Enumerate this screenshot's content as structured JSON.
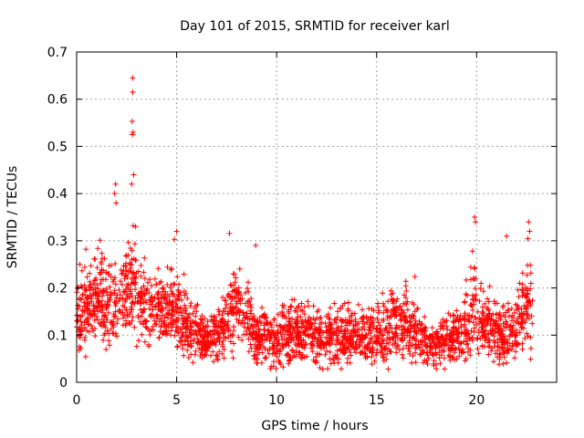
{
  "chart_data": {
    "type": "scatter",
    "title": "Day 101 of 2015, SRMTID for receiver karl",
    "xlabel": "GPS time / hours",
    "ylabel": "SRMTID / TECUs",
    "xlim": [
      0,
      24
    ],
    "ylim": [
      0,
      0.7
    ],
    "grid": true,
    "marker": "+",
    "xticks": [
      0,
      5,
      10,
      15,
      20
    ],
    "xtick_labels": [
      "0",
      "5",
      "10",
      "15",
      "20"
    ],
    "yticks": [
      0,
      0.1,
      0.2,
      0.3,
      0.4,
      0.5,
      0.6,
      0.7
    ],
    "ytick_labels": [
      "0",
      "0.1",
      "0.2",
      "0.3",
      "0.4",
      "0.5",
      "0.6",
      "0.7"
    ],
    "color": "#ff0000",
    "data_extent_hours": [
      0,
      22.8
    ],
    "series": [
      {
        "name": "SRMTID",
        "profile_hours": [
          0,
          0.5,
          1.0,
          1.5,
          2.0,
          2.5,
          2.8,
          3.2,
          3.8,
          4.5,
          5.0,
          5.5,
          6.0,
          6.5,
          7.0,
          7.5,
          8.0,
          8.5,
          9.0,
          9.5,
          10.0,
          10.5,
          11.0,
          11.5,
          12.0,
          12.5,
          13.0,
          13.5,
          14.0,
          14.5,
          15.0,
          15.5,
          16.0,
          16.5,
          17.0,
          17.5,
          18.0,
          18.5,
          19.0,
          19.5,
          19.9,
          20.3,
          20.8,
          21.3,
          21.8,
          22.2,
          22.6,
          22.8
        ],
        "profile_mean": [
          0.14,
          0.15,
          0.19,
          0.17,
          0.16,
          0.19,
          0.22,
          0.17,
          0.16,
          0.15,
          0.16,
          0.12,
          0.1,
          0.09,
          0.1,
          0.13,
          0.16,
          0.14,
          0.1,
          0.1,
          0.09,
          0.1,
          0.11,
          0.1,
          0.1,
          0.09,
          0.09,
          0.1,
          0.1,
          0.09,
          0.1,
          0.11,
          0.13,
          0.12,
          0.1,
          0.08,
          0.08,
          0.09,
          0.1,
          0.11,
          0.17,
          0.13,
          0.11,
          0.1,
          0.1,
          0.14,
          0.16,
          0.15
        ],
        "profile_spread": [
          0.05,
          0.05,
          0.06,
          0.07,
          0.05,
          0.07,
          0.09,
          0.06,
          0.05,
          0.05,
          0.06,
          0.04,
          0.04,
          0.03,
          0.04,
          0.05,
          0.05,
          0.05,
          0.04,
          0.04,
          0.04,
          0.04,
          0.04,
          0.04,
          0.04,
          0.04,
          0.04,
          0.04,
          0.04,
          0.04,
          0.04,
          0.05,
          0.05,
          0.05,
          0.04,
          0.03,
          0.03,
          0.04,
          0.04,
          0.05,
          0.07,
          0.05,
          0.04,
          0.04,
          0.04,
          0.06,
          0.06,
          0.06
        ],
        "point_count": 2600,
        "peaks": [
          {
            "x": 2.8,
            "y": 0.645
          },
          {
            "x": 2.8,
            "y": 0.615
          },
          {
            "x": 2.78,
            "y": 0.553
          },
          {
            "x": 2.82,
            "y": 0.53
          },
          {
            "x": 2.79,
            "y": 0.525
          },
          {
            "x": 2.85,
            "y": 0.44
          },
          {
            "x": 2.75,
            "y": 0.42
          },
          {
            "x": 1.95,
            "y": 0.42
          },
          {
            "x": 1.9,
            "y": 0.4
          },
          {
            "x": 1.97,
            "y": 0.38
          },
          {
            "x": 2.95,
            "y": 0.33
          },
          {
            "x": 5.0,
            "y": 0.32
          },
          {
            "x": 8.95,
            "y": 0.29
          },
          {
            "x": 19.9,
            "y": 0.35
          },
          {
            "x": 19.95,
            "y": 0.34
          },
          {
            "x": 22.6,
            "y": 0.34
          },
          {
            "x": 22.65,
            "y": 0.32
          },
          {
            "x": 21.5,
            "y": 0.31
          }
        ]
      }
    ]
  }
}
